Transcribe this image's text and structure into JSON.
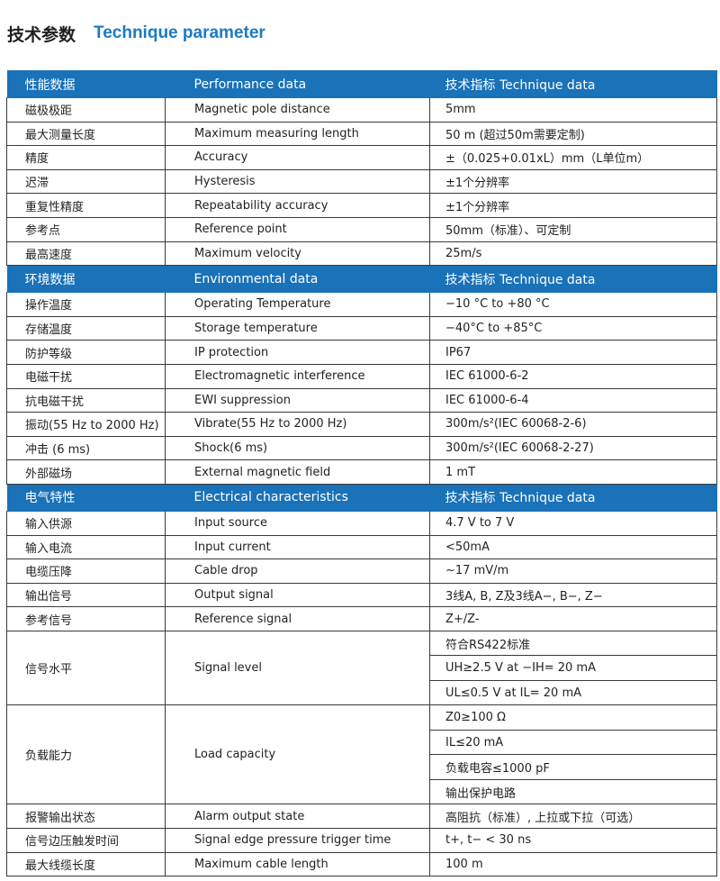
{
  "title": {
    "cn": "技术参数",
    "en": "Technique parameter"
  },
  "colors": {
    "header_bg": "#1a72b8",
    "title_blue": "#1a7bc4"
  },
  "sections": [
    {
      "header": [
        "性能数据",
        "Performance data",
        "技术指标   Technique data"
      ],
      "rows": [
        [
          "磁极极距",
          "Magnetic pole distance",
          "5mm"
        ],
        [
          "最大测量长度",
          "Maximum measuring length",
          "50 m (超过50m需要定制)"
        ],
        [
          "精度",
          "Accuracy",
          "±（0.025+0.01xL）mm（L单位m）"
        ],
        [
          "迟滞",
          "Hysteresis",
          "±1个分辨率"
        ],
        [
          "重复性精度",
          "Repeatability accuracy",
          "±1个分辨率"
        ],
        [
          "参考点",
          "Reference point",
          "50mm（标准）、可定制"
        ],
        [
          "最高速度",
          "Maximum velocity",
          "25m/s"
        ]
      ]
    },
    {
      "header": [
        "环境数据",
        "Environmental data",
        "技术指标   Technique data"
      ],
      "rows": [
        [
          "操作温度",
          "Operating Temperature",
          "−10 °C to +80 °C"
        ],
        [
          "存储温度",
          "Storage temperature",
          "−40°C to +85°C"
        ],
        [
          "防护等级",
          "IP protection",
          "IP67"
        ],
        [
          "电磁干扰",
          "Electromagnetic interference",
          "IEC 61000-6-2"
        ],
        [
          "抗电磁干扰",
          "EWI suppression",
          "IEC 61000-6-4"
        ],
        [
          "振动(55 Hz to 2000 Hz)",
          "Vibrate(55 Hz to 2000 Hz)",
          "300m/s²(IEC 60068-2-6)"
        ],
        [
          "冲击 (6 ms)",
          "Shock(6 ms)",
          "300m/s²(IEC 60068-2-27)"
        ],
        [
          "外部磁场",
          "External magnetic field",
          "1 mT"
        ]
      ]
    },
    {
      "header": [
        "电气特性",
        "Electrical characteristics",
        "技术指标   Technique data"
      ],
      "rows": [
        [
          "输入供源",
          "Input source",
          "4.7 V to 7 V"
        ],
        [
          "输入电流",
          "Input current",
          "<50mA"
        ],
        [
          "电缆压降",
          "Cable drop",
          "~17 mV/m"
        ],
        [
          "输出信号",
          "Output signal",
          "3线A, B, Z及3线A−, B−, Z−"
        ],
        [
          "参考信号",
          "Reference signal",
          "Z+/Z-"
        ]
      ],
      "signal_level": {
        "cn": "信号水平",
        "en": "Signal level",
        "values": [
          "符合RS422标准",
          "UH≥2.5 V at −IH= 20 mA",
          "UL≤0.5 V at IL= 20 mA"
        ]
      },
      "load_capacity": {
        "cn": "负载能力",
        "en": "Load capacity",
        "values": [
          "Z0≥100 Ω",
          "IL≤20 mA",
          "负载电容≤1000 pF",
          "输出保护电路"
        ]
      },
      "rows_after": [
        [
          "报警输出状态",
          "Alarm output state",
          "高阻抗（标准）, 上拉或下拉（可选）"
        ],
        [
          "信号边压触发时间",
          "Signal edge pressure trigger time",
          "t+, t− < 30 ns"
        ],
        [
          "最大线缆长度",
          "Maximum cable length",
          "100 m"
        ]
      ]
    }
  ]
}
